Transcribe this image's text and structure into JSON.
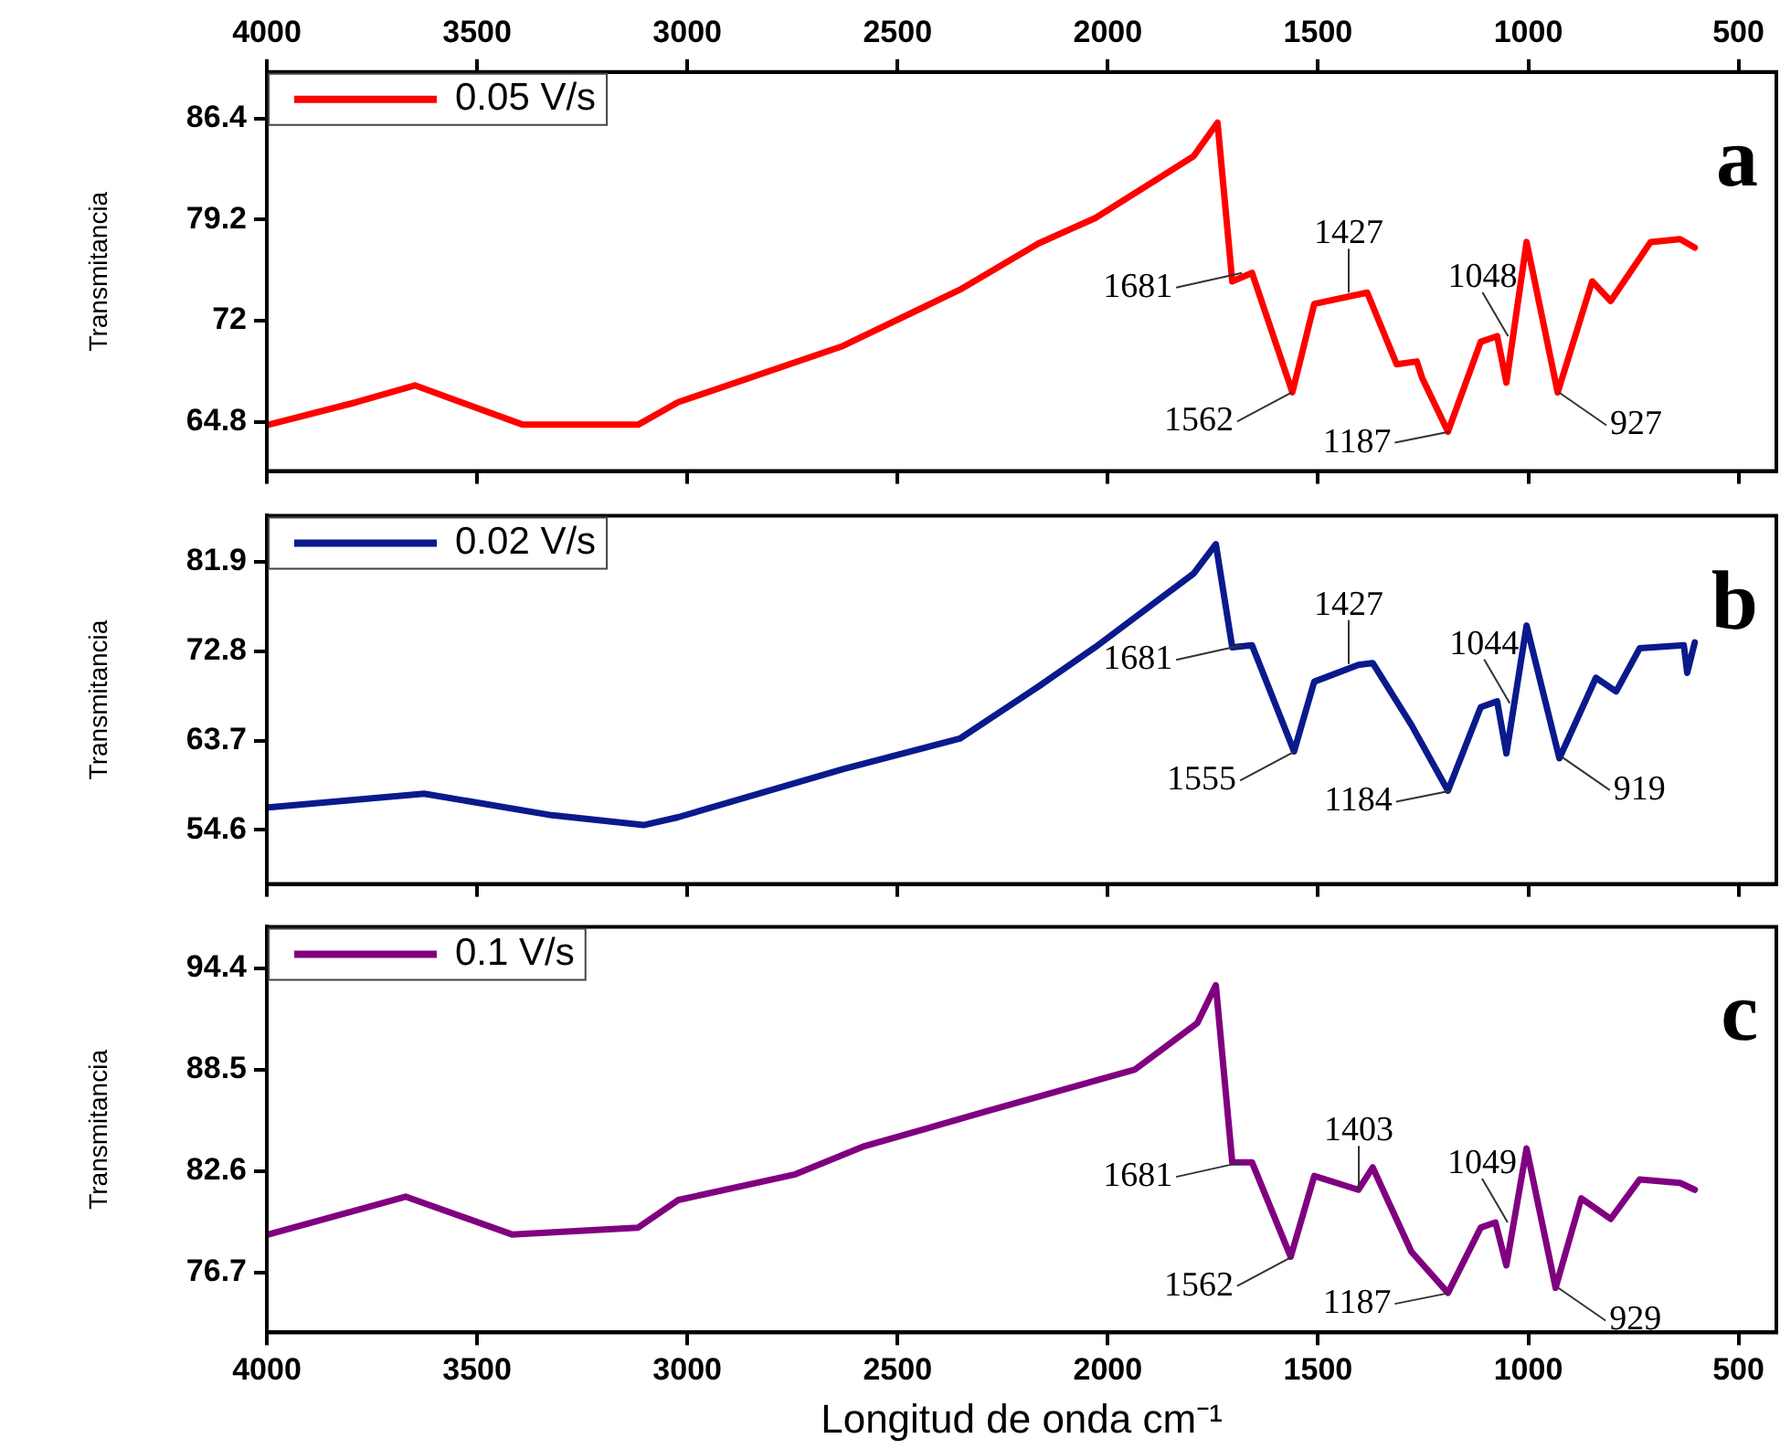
{
  "chart_data": [
    {
      "type": "line",
      "ylabel": "Transmitancia",
      "xlim": [
        4000,
        410
      ],
      "xticks": [
        4000,
        3500,
        3000,
        2500,
        2000,
        1500,
        1000,
        500
      ],
      "x2lim": [
        4000,
        410
      ],
      "x2ticks": [
        4000,
        3500,
        3000,
        2500,
        2000,
        1500,
        1000,
        500
      ],
      "ylim": [
        61.3,
        89.7
      ],
      "yticks": [
        64.8,
        72.0,
        79.2,
        86.4
      ],
      "tick_labels": "y",
      "legend": "top left",
      "marker": "none",
      "x": [
        3996,
        3787,
        3648,
        3391,
        3117,
        3022,
        2630,
        2352,
        2165,
        2030,
        1796,
        1739,
        1704,
        1657,
        1561,
        1509,
        1383,
        1313,
        1265,
        1252,
        1191,
        1113,
        1074,
        1052,
        1004,
        930,
        848,
        804,
        709,
        639,
        604
      ],
      "series": [
        {
          "name": "0.05 V/s",
          "color": "#ff0000",
          "values": [
            64.6,
            66.2,
            67.4,
            64.6,
            64.6,
            66.2,
            70.2,
            74.2,
            77.5,
            79.3,
            83.7,
            86.1,
            74.8,
            75.4,
            66.9,
            73.2,
            74.0,
            68.9,
            69.1,
            67.9,
            64.1,
            70.5,
            70.9,
            67.6,
            77.6,
            66.9,
            74.8,
            73.4,
            77.6,
            77.8,
            77.2
          ]
        }
      ],
      "annotations": [
        "a",
        {
          "text": "1681",
          "x": 1681,
          "y": 75.4
        },
        {
          "text": "1562",
          "x": 1562,
          "y": 66.9
        },
        {
          "text": "1427",
          "x": 1427,
          "y": 74.0
        },
        {
          "text": "1187",
          "x": 1187,
          "y": 64.1
        },
        {
          "text": "1048",
          "x": 1048,
          "y": 70.9
        },
        {
          "text": "927",
          "x": 927,
          "y": 66.9
        }
      ]
    },
    {
      "type": "line",
      "ylabel": "Transmitancia",
      "xlim": [
        4000,
        410
      ],
      "xticks": [
        4000,
        3500,
        3000,
        2500,
        2000,
        1500,
        1000,
        500
      ],
      "ylim": [
        49.1,
        86.6
      ],
      "yticks": [
        54.6,
        63.7,
        72.8,
        81.9
      ],
      "tick_labels": "y",
      "legend": "top left",
      "marker": "none",
      "x": [
        3996,
        3626,
        3322,
        3104,
        3022,
        2630,
        2352,
        2165,
        2030,
        1796,
        1743,
        1704,
        1657,
        1557,
        1509,
        1404,
        1370,
        1278,
        1191,
        1113,
        1074,
        1052,
        1004,
        926,
        839,
        791,
        735,
        630,
        622,
        604
      ],
      "series": [
        {
          "name": "0.02 V/s",
          "color": "#0a1a8c",
          "values": [
            56.9,
            58.3,
            56.1,
            55.1,
            55.9,
            60.8,
            63.9,
            69.2,
            73.2,
            80.7,
            83.7,
            73.2,
            73.4,
            62.6,
            69.7,
            71.4,
            71.6,
            65.3,
            58.6,
            67.1,
            67.7,
            62.4,
            75.4,
            61.9,
            70.1,
            68.7,
            73.1,
            73.4,
            70.6,
            73.7
          ]
        }
      ],
      "annotations": [
        "b",
        {
          "text": "1681",
          "x": 1681,
          "y": 73.4
        },
        {
          "text": "1555",
          "x": 1555,
          "y": 62.6
        },
        {
          "text": "1427",
          "x": 1427,
          "y": 71.5
        },
        {
          "text": "1184",
          "x": 1184,
          "y": 58.6
        },
        {
          "text": "1044",
          "x": 1044,
          "y": 67.5
        },
        {
          "text": "919",
          "x": 919,
          "y": 62.0
        }
      ]
    },
    {
      "type": "line",
      "ylabel": "Transmitancia",
      "xlabel": "Longitud de onda cm⁻¹",
      "xlim": [
        4000,
        410
      ],
      "xticks": [
        4000,
        3500,
        3000,
        2500,
        2000,
        1500,
        1000,
        500
      ],
      "ylim": [
        73.2,
        96.8
      ],
      "yticks": [
        76.7,
        82.6,
        88.5,
        94.4
      ],
      "legend": "top left",
      "marker": "none",
      "x": [
        3996,
        3670,
        3417,
        3117,
        3022,
        2743,
        2583,
        2283,
        1935,
        1787,
        1743,
        1704,
        1657,
        1565,
        1509,
        1404,
        1370,
        1278,
        1191,
        1113,
        1078,
        1052,
        1004,
        935,
        874,
        804,
        735,
        639,
        604
      ],
      "series": [
        {
          "name": "0.1 V/s",
          "color": "#800080",
          "values": [
            78.9,
            81.1,
            78.9,
            79.3,
            80.9,
            82.4,
            84.0,
            86.1,
            88.5,
            91.2,
            93.4,
            83.1,
            83.1,
            77.6,
            82.3,
            81.5,
            82.8,
            77.9,
            75.5,
            79.3,
            79.6,
            77.1,
            83.9,
            75.8,
            81.0,
            79.8,
            82.1,
            81.9,
            81.5
          ]
        }
      ],
      "annotations": [
        "c",
        {
          "text": "1681",
          "x": 1681,
          "y": 83.1
        },
        {
          "text": "1562",
          "x": 1562,
          "y": 77.6
        },
        {
          "text": "1403",
          "x": 1403,
          "y": 81.5
        },
        {
          "text": "1187",
          "x": 1187,
          "y": 75.5
        },
        {
          "text": "1049",
          "x": 1049,
          "y": 79.6
        },
        {
          "text": "929",
          "x": 929,
          "y": 75.8
        }
      ]
    }
  ]
}
